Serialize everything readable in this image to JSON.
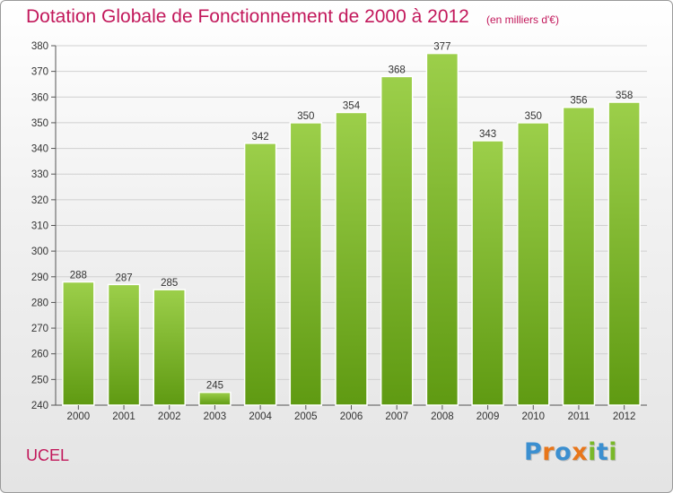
{
  "title": "Dotation Globale de Fonctionnement de 2000 à 2012",
  "subtitle": "(en milliers d'€)",
  "place": "UCEL",
  "logo": {
    "letters": [
      "P",
      "r",
      "o",
      "x",
      "i",
      "t",
      "i"
    ]
  },
  "colors": {
    "title": "#c2185b",
    "bar_top": "#9ccf4a",
    "bar_bottom": "#5f9a12",
    "logo": [
      "#3b8fd0",
      "#e8761a",
      "#3b8fd0",
      "#e8761a",
      "#79b829",
      "#3b8fd0",
      "#79b829"
    ]
  },
  "chart_data": {
    "type": "bar",
    "title": "Dotation Globale de Fonctionnement de 2000 à 2012",
    "subtitle": "(en milliers d'€)",
    "categories": [
      "2000",
      "2001",
      "2002",
      "2003",
      "2004",
      "2005",
      "2006",
      "2007",
      "2008",
      "2009",
      "2010",
      "2011",
      "2012"
    ],
    "values": [
      288,
      287,
      285,
      245,
      342,
      350,
      354,
      368,
      377,
      343,
      350,
      356,
      358
    ],
    "ylim": [
      240,
      380
    ],
    "yticks": [
      240,
      250,
      260,
      270,
      280,
      290,
      300,
      310,
      320,
      330,
      340,
      350,
      360,
      370,
      380
    ],
    "grid": true,
    "data_labels": true
  }
}
